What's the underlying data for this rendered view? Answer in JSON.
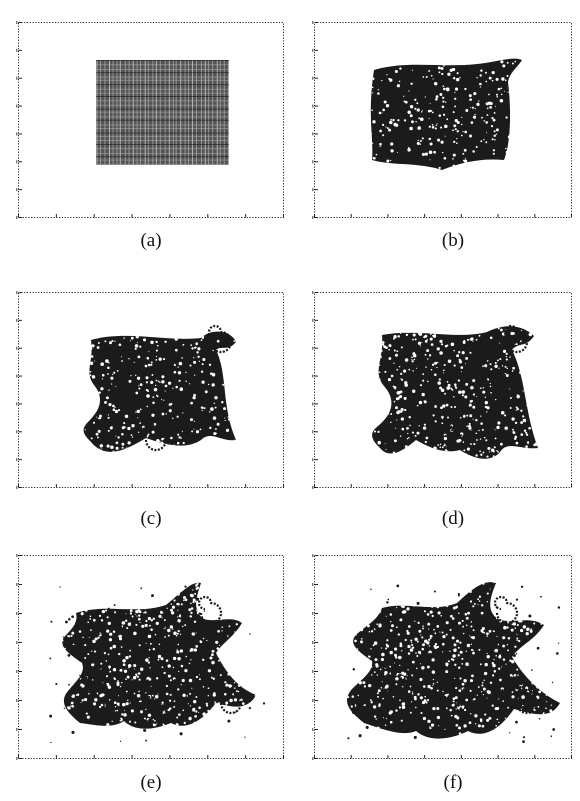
{
  "figure": {
    "panels": [
      {
        "label": "(a)",
        "stage": 0
      },
      {
        "label": "(b)",
        "stage": 1
      },
      {
        "label": "(c)",
        "stage": 2
      },
      {
        "label": "(d)",
        "stage": 3
      },
      {
        "label": "(e)",
        "stage": 4
      },
      {
        "label": "(f)",
        "stage": 5
      }
    ],
    "axis_color": "#222222",
    "blob_color": "#1b1b1b",
    "speckle_color": "#ffffff"
  }
}
